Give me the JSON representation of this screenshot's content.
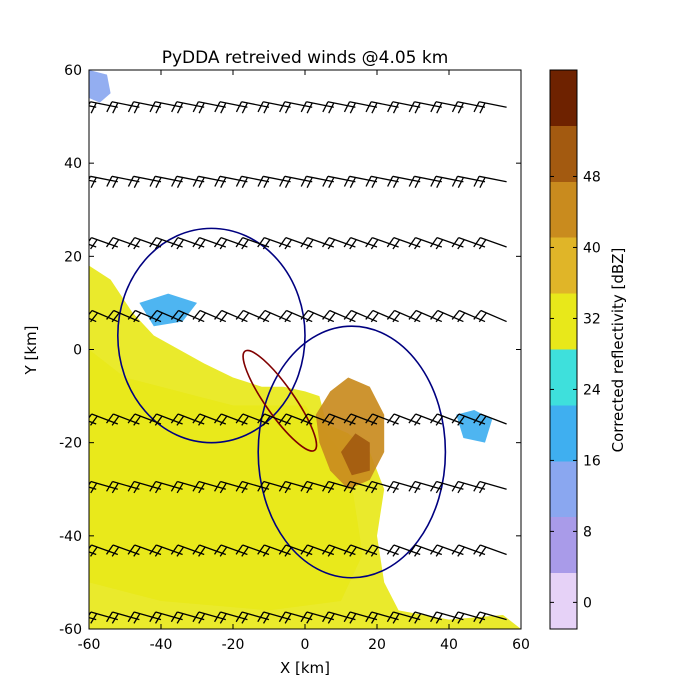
{
  "chart_data": {
    "type": "heatmap",
    "title": "PyDDA retreived winds @4.05 km",
    "xlabel": "X [km]",
    "ylabel": "Y [km]",
    "xlim": [
      -60,
      60
    ],
    "ylim": [
      -60,
      60
    ],
    "x_ticks": [
      -60,
      -40,
      -20,
      0,
      20,
      40,
      60
    ],
    "y_ticks": [
      -60,
      -40,
      -20,
      0,
      20,
      40,
      60
    ],
    "colorbar": {
      "label": "Corrected reflectivity [dBZ]",
      "ticks": [
        0,
        8,
        16,
        24,
        32,
        40,
        48
      ],
      "range": [
        -3,
        60
      ],
      "colors": [
        "#e6d2f7",
        "#a99be9",
        "#8aa7f0",
        "#3faff0",
        "#3ee0dc",
        "#e8e81a",
        "#e0b528",
        "#c98b1e",
        "#a35a10",
        "#6e2200"
      ]
    },
    "reflectivity_regions": [
      {
        "name": "southwest precipitation",
        "dbz": 30,
        "points": [
          [
            -60,
            18
          ],
          [
            -54,
            15
          ],
          [
            -48,
            8
          ],
          [
            -42,
            3
          ],
          [
            -35,
            0
          ],
          [
            -28,
            -3
          ],
          [
            -20,
            -6
          ],
          [
            -12,
            -8
          ],
          [
            -6,
            -8
          ],
          [
            0,
            -9
          ],
          [
            4,
            -10
          ],
          [
            6,
            -16
          ],
          [
            12,
            -18
          ],
          [
            18,
            -22
          ],
          [
            22,
            -30
          ],
          [
            20,
            -40
          ],
          [
            22,
            -50
          ],
          [
            26,
            -56
          ],
          [
            40,
            -58
          ],
          [
            55,
            -57
          ],
          [
            60,
            -60
          ],
          [
            -60,
            -60
          ]
        ]
      },
      {
        "name": "southwest core",
        "dbz": 34,
        "points": [
          [
            -60,
            0
          ],
          [
            -50,
            -6
          ],
          [
            -40,
            -8
          ],
          [
            -30,
            -10
          ],
          [
            -20,
            -12
          ],
          [
            -10,
            -12
          ],
          [
            0,
            -12
          ],
          [
            6,
            -18
          ],
          [
            12,
            -24
          ],
          [
            14,
            -34
          ],
          [
            16,
            -44
          ],
          [
            10,
            -54
          ],
          [
            -10,
            -56
          ],
          [
            -40,
            -54
          ],
          [
            -60,
            -50
          ]
        ]
      },
      {
        "name": "storm cell",
        "dbz": 42,
        "points": [
          [
            3,
            -14
          ],
          [
            7,
            -9
          ],
          [
            12,
            -6
          ],
          [
            18,
            -8
          ],
          [
            22,
            -14
          ],
          [
            22,
            -22
          ],
          [
            18,
            -28
          ],
          [
            12,
            -30
          ],
          [
            7,
            -26
          ],
          [
            4,
            -20
          ]
        ]
      },
      {
        "name": "storm core",
        "dbz": 52,
        "points": [
          [
            10,
            -22
          ],
          [
            14,
            -18
          ],
          [
            18,
            -20
          ],
          [
            18,
            -26
          ],
          [
            13,
            -27
          ]
        ]
      },
      {
        "name": "top-left echo",
        "dbz": 14,
        "points": [
          [
            -60,
            60
          ],
          [
            -55,
            59
          ],
          [
            -54,
            55
          ],
          [
            -57,
            53
          ],
          [
            -60,
            54
          ]
        ]
      },
      {
        "name": "east echo",
        "dbz": 20,
        "points": [
          [
            42,
            -14
          ],
          [
            47,
            -13
          ],
          [
            52,
            -15
          ],
          [
            50,
            -20
          ],
          [
            44,
            -19
          ]
        ]
      },
      {
        "name": "north fragments",
        "dbz": 16,
        "points": [
          [
            -46,
            10
          ],
          [
            -38,
            12
          ],
          [
            -30,
            10
          ],
          [
            -34,
            6
          ],
          [
            -42,
            5
          ]
        ]
      }
    ],
    "dual_doppler_lobes": [
      {
        "name": "west lobe",
        "color": "#000080",
        "center": [
          -26,
          3
        ],
        "radii": [
          26,
          23
        ]
      },
      {
        "name": "east lobe",
        "color": "#000080",
        "center": [
          13,
          -22
        ],
        "radii": [
          26,
          27
        ]
      },
      {
        "name": "baseline lobe",
        "color": "#800000",
        "center": [
          -7,
          -11
        ],
        "radii": [
          4,
          13
        ],
        "rotation": -35
      }
    ],
    "wind_barbs": {
      "x": [
        -58,
        -52,
        -46,
        -40,
        -34,
        -28,
        -22,
        -16,
        -10,
        -4,
        2,
        8,
        14,
        20,
        26,
        32,
        38,
        44,
        50,
        56
      ],
      "rows": [
        {
          "y": 52,
          "u": 30,
          "v": -6
        },
        {
          "y": 36,
          "u": 30,
          "v": -6
        },
        {
          "y": 22,
          "u": 28,
          "v": -10
        },
        {
          "y": 6,
          "u": 28,
          "v": -12
        },
        {
          "y": -16,
          "u": 26,
          "v": -10
        },
        {
          "y": -30,
          "u": 28,
          "v": -8
        },
        {
          "y": -44,
          "u": 28,
          "v": -10
        },
        {
          "y": -58,
          "u": 28,
          "v": -8
        }
      ],
      "color": "#000000"
    },
    "grid": false
  }
}
